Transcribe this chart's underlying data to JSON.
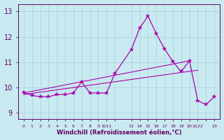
{
  "background_color": "#c8eaf0",
  "grid_color": "#b0d8e0",
  "line_color": "#aa00aa",
  "xlabel": "Windchill (Refroidissement éolien,°C)",
  "ylim": [
    8.75,
    13.3
  ],
  "yticks": [
    9,
    10,
    11,
    12,
    13
  ],
  "x_data": [
    0,
    1,
    2,
    3,
    4,
    5,
    6,
    7,
    8,
    9,
    10,
    11,
    13,
    14,
    15,
    16,
    17,
    18,
    19,
    20,
    21,
    22,
    23
  ],
  "y_main": [
    9.8,
    9.68,
    9.63,
    9.63,
    9.72,
    9.72,
    9.78,
    10.22,
    9.78,
    9.78,
    9.78,
    10.55,
    11.5,
    12.35,
    12.82,
    12.12,
    11.52,
    11.02,
    10.62,
    11.05,
    9.48,
    9.32,
    9.63
  ],
  "trend1_x": [
    0,
    20
  ],
  "trend1_y": [
    9.78,
    11.05
  ],
  "trend2_x": [
    0,
    21
  ],
  "trend2_y": [
    9.72,
    10.68
  ],
  "xtick_positions": [
    0,
    1,
    2,
    3,
    4,
    5,
    6,
    7,
    8,
    9,
    10,
    11,
    13,
    14,
    15,
    16,
    17,
    18,
    19,
    20,
    21,
    22,
    23
  ],
  "xtick_labels": [
    "0",
    "1",
    "2",
    "3",
    "4",
    "5",
    "6",
    "7",
    "8",
    "9",
    "1011",
    "",
    "13",
    "14",
    "15",
    "16",
    "17",
    "18",
    "19",
    "20",
    "2122",
    "",
    "23"
  ]
}
